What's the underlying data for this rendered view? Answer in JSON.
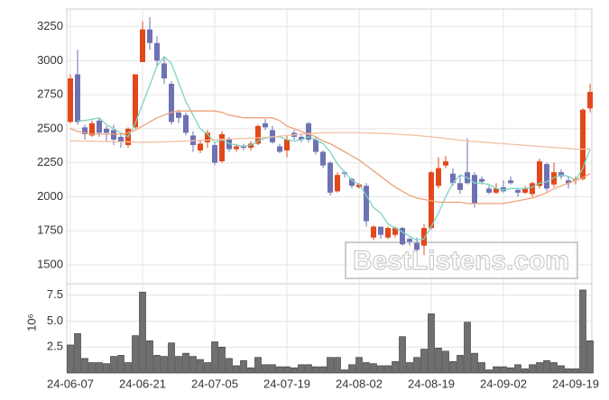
{
  "chart_data": {
    "type": "candlestick",
    "categories": [
      "24-06-07",
      null,
      null,
      null,
      null,
      null,
      null,
      null,
      null,
      null,
      "24-06-21",
      null,
      null,
      null,
      null,
      null,
      null,
      null,
      null,
      null,
      "24-07-05",
      null,
      null,
      null,
      null,
      null,
      null,
      null,
      null,
      null,
      "24-07-19",
      null,
      null,
      null,
      null,
      null,
      null,
      null,
      null,
      null,
      "24-08-02",
      null,
      null,
      null,
      null,
      null,
      null,
      null,
      null,
      null,
      "24-08-19",
      null,
      null,
      null,
      null,
      null,
      null,
      null,
      null,
      null,
      "24-09-02",
      null,
      null,
      null,
      null,
      null,
      null,
      null,
      null,
      null,
      "24-09-19",
      null,
      null
    ],
    "open": [
      2550,
      2900,
      2510,
      2450,
      2560,
      2500,
      2490,
      2440,
      2380,
      2510,
      2990,
      3230,
      3130,
      2980,
      2830,
      2620,
      2600,
      2450,
      2340,
      2400,
      2380,
      2260,
      2420,
      2350,
      2370,
      2360,
      2390,
      2540,
      2490,
      2370,
      2340,
      2470,
      2440,
      2540,
      2420,
      2330,
      2250,
      2040,
      2180,
      2130,
      2070,
      2080,
      1700,
      1780,
      1700,
      1720,
      1770,
      1690,
      1660,
      1640,
      1770,
      2080,
      2230,
      2170,
      2100,
      2180,
      2160,
      2130,
      2060,
      2030,
      2070,
      2120,
      2050,
      2030,
      2020,
      2080,
      2240,
      2090,
      2180,
      2120,
      2120,
      2130,
      2650
    ],
    "high": [
      2900,
      3080,
      2530,
      2560,
      2580,
      2520,
      2530,
      2460,
      2510,
      2900,
      3290,
      3320,
      3180,
      3020,
      2850,
      2640,
      2620,
      2480,
      2420,
      2490,
      2400,
      2480,
      2440,
      2390,
      2390,
      2410,
      2530,
      2570,
      2520,
      2390,
      2450,
      2490,
      2460,
      2550,
      2440,
      2340,
      2260,
      2180,
      2190,
      2140,
      2100,
      2100,
      1790,
      1780,
      1780,
      1780,
      1780,
      1700,
      1700,
      1800,
      2190,
      2290,
      2300,
      2210,
      2160,
      2430,
      2180,
      2150,
      2080,
      2100,
      2120,
      2150,
      2060,
      2080,
      2110,
      2280,
      2250,
      2250,
      2200,
      2150,
      2150,
      2650,
      2830
    ],
    "low": [
      2540,
      2530,
      2420,
      2440,
      2440,
      2400,
      2380,
      2360,
      2360,
      2500,
      2990,
      3080,
      2960,
      2830,
      2530,
      2540,
      2450,
      2330,
      2320,
      2360,
      2230,
      2250,
      2330,
      2330,
      2340,
      2340,
      2380,
      2490,
      2390,
      2320,
      2290,
      2420,
      2400,
      2400,
      2310,
      2210,
      2010,
      2030,
      2140,
      2060,
      2060,
      1780,
      1680,
      1690,
      1690,
      1700,
      1640,
      1640,
      1600,
      1570,
      1760,
      2060,
      2210,
      2080,
      2020,
      2090,
      1920,
      2090,
      2020,
      2020,
      2030,
      2090,
      2000,
      2020,
      2000,
      2060,
      2040,
      2070,
      2130,
      2060,
      2090,
      2120,
      2620
    ],
    "close": [
      2870,
      2550,
      2460,
      2540,
      2470,
      2470,
      2420,
      2400,
      2500,
      2900,
      3230,
      3130,
      3000,
      2870,
      2550,
      2580,
      2470,
      2380,
      2390,
      2470,
      2250,
      2460,
      2350,
      2370,
      2360,
      2390,
      2520,
      2510,
      2400,
      2330,
      2420,
      2440,
      2420,
      2420,
      2330,
      2230,
      2030,
      2160,
      2170,
      2080,
      2090,
      1820,
      1780,
      1720,
      1770,
      1770,
      1650,
      1670,
      1610,
      1770,
      2180,
      2210,
      2260,
      2100,
      2050,
      2100,
      1950,
      2110,
      2030,
      2060,
      2040,
      2100,
      2030,
      2060,
      2100,
      2260,
      2060,
      2180,
      2150,
      2100,
      2130,
      2640,
      2770
    ],
    "up_color": "#e2481a",
    "down_color": "#6e72b4",
    "moving_averages": [
      {
        "color": "#7fd3c2",
        "values": [
          null,
          2560,
          2560,
          2570,
          2580,
          2530,
          2500,
          2470,
          2440,
          2540,
          2680,
          2820,
          2960,
          3030,
          2980,
          2840,
          2700,
          2600,
          2500,
          2460,
          2400,
          2420,
          2390,
          2380,
          2370,
          2380,
          2410,
          2430,
          2440,
          2440,
          2420,
          2410,
          2420,
          2440,
          2420,
          2390,
          2330,
          2240,
          2180,
          2120,
          2090,
          2010,
          1920,
          1880,
          1800,
          1770,
          1740,
          1710,
          1680,
          1690,
          1780,
          1880,
          2000,
          2100,
          2160,
          2140,
          2100,
          2100,
          2090,
          2060,
          2050,
          2060,
          2060,
          2060,
          2070,
          2100,
          2110,
          2140,
          2160,
          2150,
          2120,
          2210,
          2350
        ]
      },
      {
        "color": "#eea27a",
        "values": [
          2500,
          2480,
          2470,
          2460,
          2460,
          2460,
          2460,
          2460,
          2470,
          2490,
          2520,
          2550,
          2580,
          2600,
          2620,
          2630,
          2630,
          2630,
          2630,
          2630,
          2630,
          2620,
          2600,
          2590,
          2580,
          2580,
          2580,
          2580,
          2580,
          2560,
          2520,
          2500,
          2480,
          2460,
          2440,
          2410,
          2390,
          2360,
          2330,
          2300,
          2270,
          2230,
          2190,
          2150,
          2110,
          2070,
          2040,
          2010,
          1990,
          1980,
          1970,
          1960,
          1960,
          1960,
          1960,
          1950,
          1950,
          1950,
          1950,
          1950,
          1950,
          1960,
          1970,
          1980,
          1990,
          2010,
          2030,
          2060,
          2080,
          2100,
          2120,
          2140,
          2170
        ]
      },
      {
        "color": "#f0c0a4",
        "values": [
          2410,
          2410,
          2409,
          2408,
          2407,
          2406,
          2405,
          2404,
          2403,
          2402,
          2400,
          2401,
          2402,
          2404,
          2406,
          2408,
          2410,
          2412,
          2414,
          2416,
          2420,
          2422,
          2424,
          2426,
          2428,
          2430,
          2433,
          2436,
          2440,
          2445,
          2450,
          2455,
          2460,
          2464,
          2468,
          2470,
          2471,
          2472,
          2472,
          2472,
          2470,
          2469,
          2468,
          2466,
          2464,
          2460,
          2457,
          2454,
          2450,
          2445,
          2440,
          2434,
          2428,
          2422,
          2416,
          2410,
          2406,
          2402,
          2398,
          2394,
          2390,
          2386,
          2382,
          2378,
          2374,
          2370,
          2366,
          2362,
          2358,
          2354,
          2350,
          2350,
          2352
        ]
      }
    ],
    "ylim": [
      1360,
      3380
    ],
    "yticks": [
      1500,
      1750,
      2000,
      2250,
      2500,
      2750,
      3000,
      3250
    ],
    "volume": {
      "color": "#6f6f6f",
      "label": "10⁶",
      "values": [
        2.7,
        3.8,
        1.4,
        1.0,
        1.0,
        0.9,
        1.6,
        1.7,
        1.0,
        3.6,
        7.8,
        3.1,
        1.7,
        1.6,
        2.9,
        1.6,
        1.9,
        1.6,
        1.3,
        1.0,
        3.0,
        2.5,
        1.4,
        0.7,
        1.2,
        0.5,
        1.5,
        0.8,
        0.8,
        0.6,
        0.6,
        0.5,
        0.8,
        0.8,
        0.6,
        0.6,
        1.5,
        1.5,
        0.3,
        0.8,
        1.5,
        1.0,
        0.9,
        0.7,
        0.7,
        1.1,
        3.5,
        1.0,
        1.5,
        2.3,
        5.7,
        2.4,
        2.1,
        1.1,
        1.7,
        4.9,
        1.9,
        1.0,
        0.3,
        0.6,
        0.6,
        0.5,
        0.8,
        0.4,
        0.8,
        1.0,
        1.2,
        1.0,
        0.7,
        0.4,
        0.4,
        8.0,
        3.1
      ],
      "ylim": [
        0,
        8.6
      ],
      "yticks": [
        2.5,
        {
          "value": 5,
          "label": "5.0"
        },
        7.5
      ]
    },
    "grid": true,
    "watermark": "BestListens.com"
  }
}
